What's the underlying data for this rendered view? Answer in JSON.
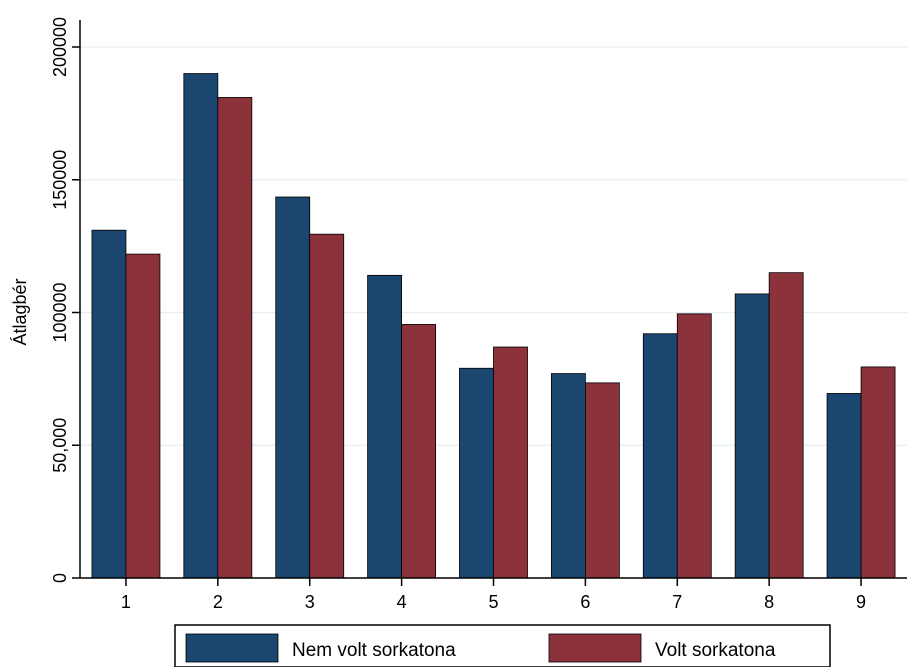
{
  "chart_data": {
    "type": "bar",
    "title": "",
    "xlabel": "",
    "ylabel": "Átlagbér",
    "categories": [
      "1",
      "2",
      "3",
      "4",
      "5",
      "6",
      "7",
      "8",
      "9"
    ],
    "series": [
      {
        "name": "Nem volt sorkatona",
        "color": "#1b4670",
        "values": [
          131000,
          190000,
          143500,
          114000,
          79000,
          77000,
          92000,
          107000,
          69500
        ]
      },
      {
        "name": "Volt sorkatona",
        "color": "#8c323a",
        "values": [
          122000,
          181000,
          129500,
          95500,
          87000,
          73500,
          99500,
          115000,
          79500
        ]
      }
    ],
    "ylim": [
      0,
      200000
    ],
    "yticks": [
      {
        "value": 0,
        "label": "0"
      },
      {
        "value": 50000,
        "label": "50,000"
      },
      {
        "value": 100000,
        "label": "100000"
      },
      {
        "value": 150000,
        "label": "150000"
      },
      {
        "value": 200000,
        "label": "200000"
      }
    ],
    "grid": true,
    "legend_position": "bottom"
  }
}
